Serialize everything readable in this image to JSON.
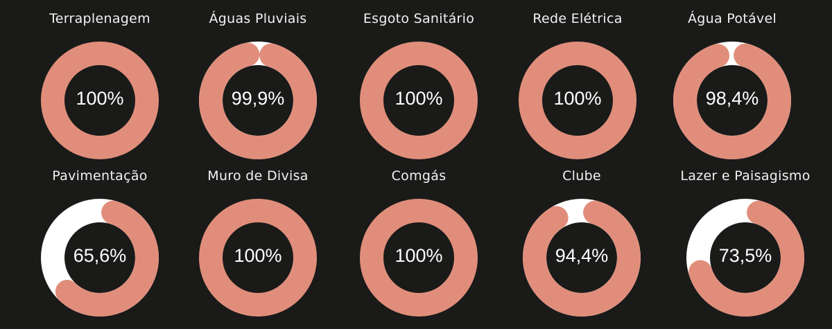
{
  "colors": {
    "background": "#1a1a19",
    "filled": "#e08e7b",
    "remaining": "#ffffff",
    "text": "#f2f2f2"
  },
  "chart_data": {
    "type": "pie",
    "subtype": "donut-grid",
    "title": "",
    "layout": {
      "rows": 2,
      "cols": 5
    },
    "categories": [
      "Terraplenagem",
      "Águas Pluviais",
      "Esgoto Sanitário",
      "Rede Elétrica",
      "Água Potável",
      "Pavimentação",
      "Muro de Divisa",
      "Comgás",
      "Clube",
      "Lazer e Paisagismo"
    ],
    "values": [
      100,
      99.9,
      100,
      100,
      98.4,
      65.6,
      100,
      100,
      94.4,
      73.5
    ],
    "unit": "%",
    "labels": [
      "100%",
      "99,9%",
      "100%",
      "100%",
      "98,4%",
      "65,6%",
      "100%",
      "100%",
      "94,4%",
      "73,5%"
    ]
  },
  "gauges": [
    {
      "title": "Terraplenagem",
      "label": "100%",
      "value": 100
    },
    {
      "title": "Águas Pluviais",
      "label": "99,9%",
      "value": 99.9
    },
    {
      "title": "Esgoto Sanitário",
      "label": "100%",
      "value": 100
    },
    {
      "title": "Rede Elétrica",
      "label": "100%",
      "value": 100
    },
    {
      "title": "Água Potável",
      "label": "98,4%",
      "value": 98.4
    },
    {
      "title": "Pavimentação",
      "label": "65,6%",
      "value": 65.6
    },
    {
      "title": "Muro de Divisa",
      "label": "100%",
      "value": 100
    },
    {
      "title": "Comgás",
      "label": "100%",
      "value": 100
    },
    {
      "title": "Clube",
      "label": "94,4%",
      "value": 94.4
    },
    {
      "title": "Lazer e Paisagismo",
      "label": "73,5%",
      "value": 73.5
    }
  ]
}
